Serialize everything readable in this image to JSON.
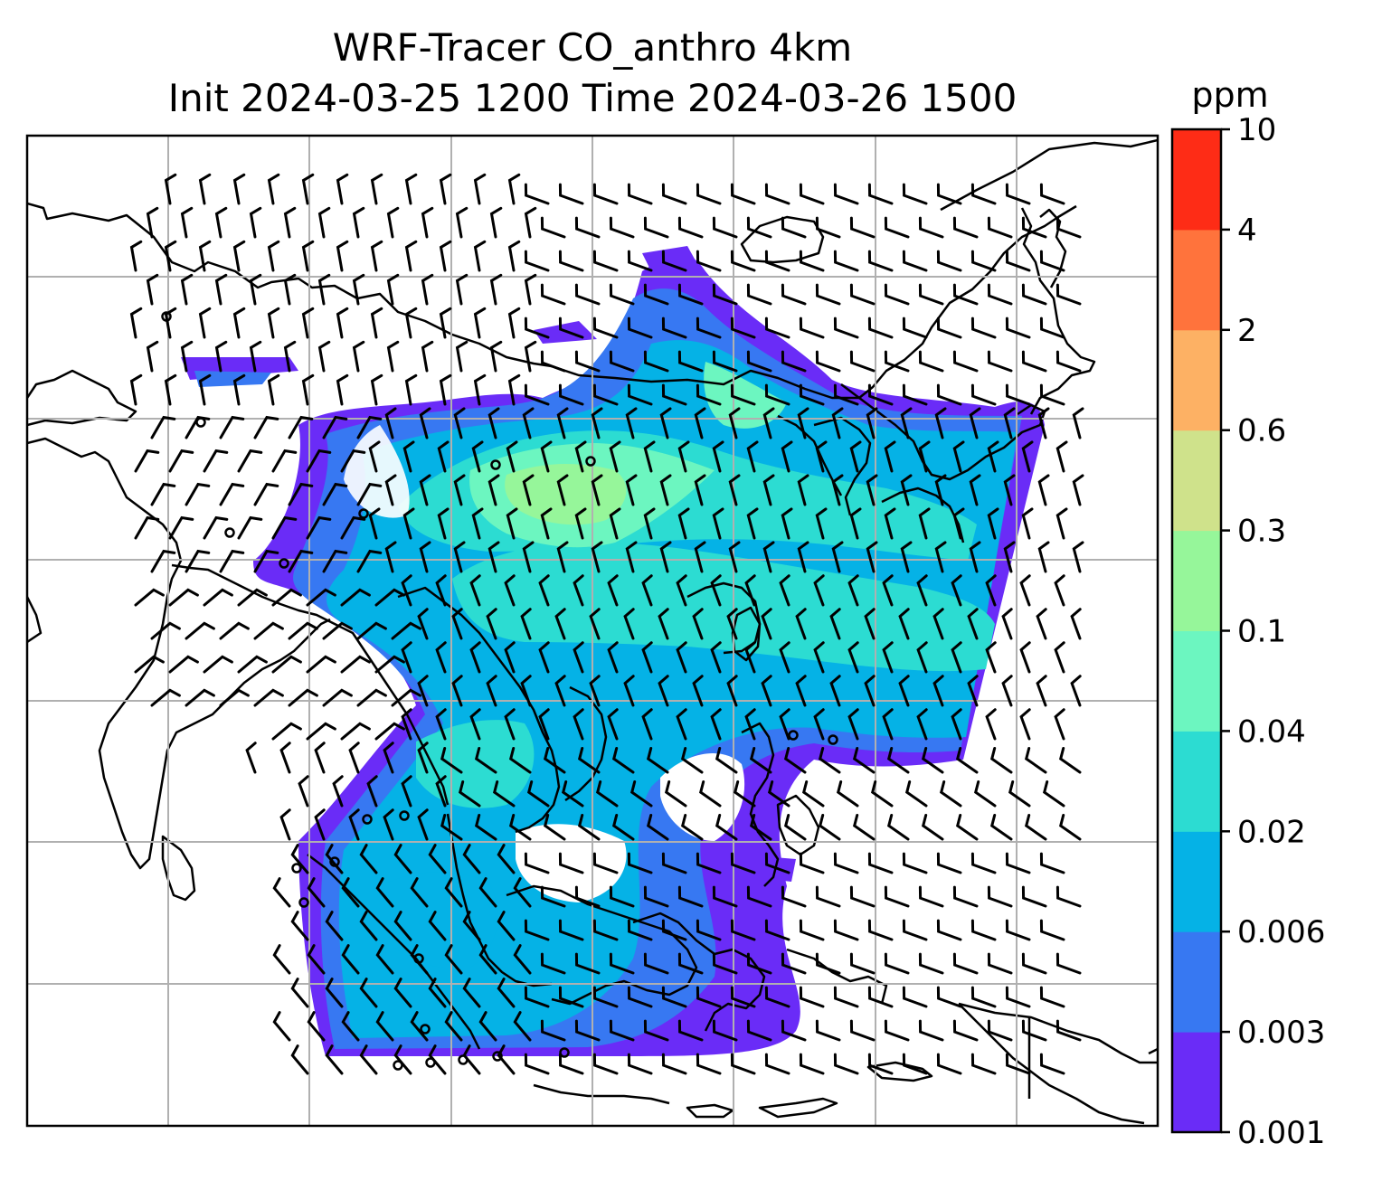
{
  "title": {
    "line1": "WRF-Tracer CO_anthro 4km",
    "line2": "Init 2024-03-25 1200 Time 2024-03-26 1500"
  },
  "colorbar": {
    "unit": "ppm",
    "levels": [
      "0.001",
      "0.003",
      "0.006",
      "0.02",
      "0.04",
      "0.1",
      "0.3",
      "0.6",
      "2",
      "4",
      "10"
    ],
    "colors": [
      "#6a2cf7",
      "#3778f2",
      "#05b2e6",
      "#2cdcd2",
      "#6cf6c0",
      "#96f69a",
      "#cfe28b",
      "#fdb164",
      "#ff733c",
      "#fe2c16"
    ]
  },
  "map": {
    "field": "CO_anthro tracer concentration",
    "wind_barbs": true,
    "coastlines": true,
    "gridlines": true,
    "colors": {
      "background": "#ffffff",
      "coastline": "#000000",
      "grid": "#b0b0b0",
      "barb": "#000000"
    }
  }
}
